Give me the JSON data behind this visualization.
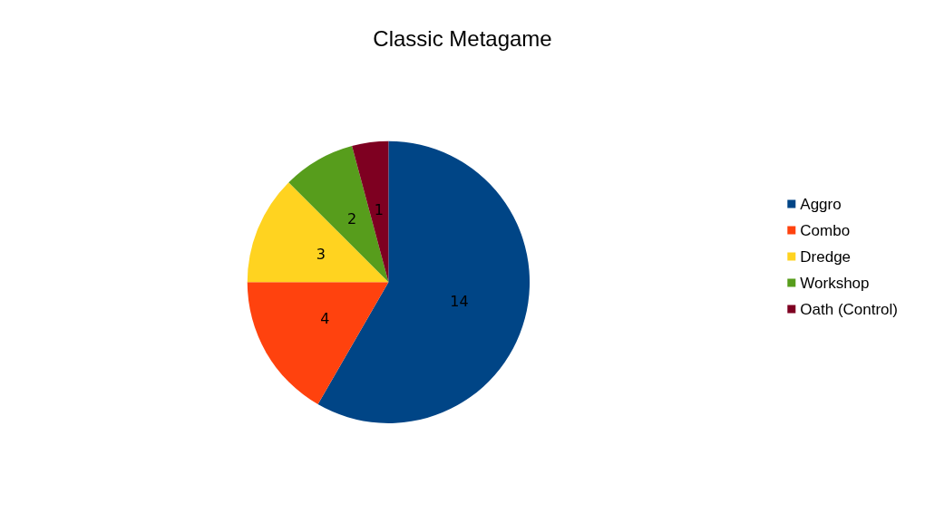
{
  "chart_data": {
    "type": "pie",
    "title": "Classic Metagame",
    "categories": [
      "Aggro",
      "Combo",
      "Dredge",
      "Workshop",
      "Oath (Control)"
    ],
    "values": [
      14,
      4,
      3,
      2,
      1
    ],
    "colors": [
      "#004586",
      "#ff420e",
      "#ffd320",
      "#579d1c",
      "#7e0021"
    ],
    "data_labels": true,
    "legend": "right"
  }
}
